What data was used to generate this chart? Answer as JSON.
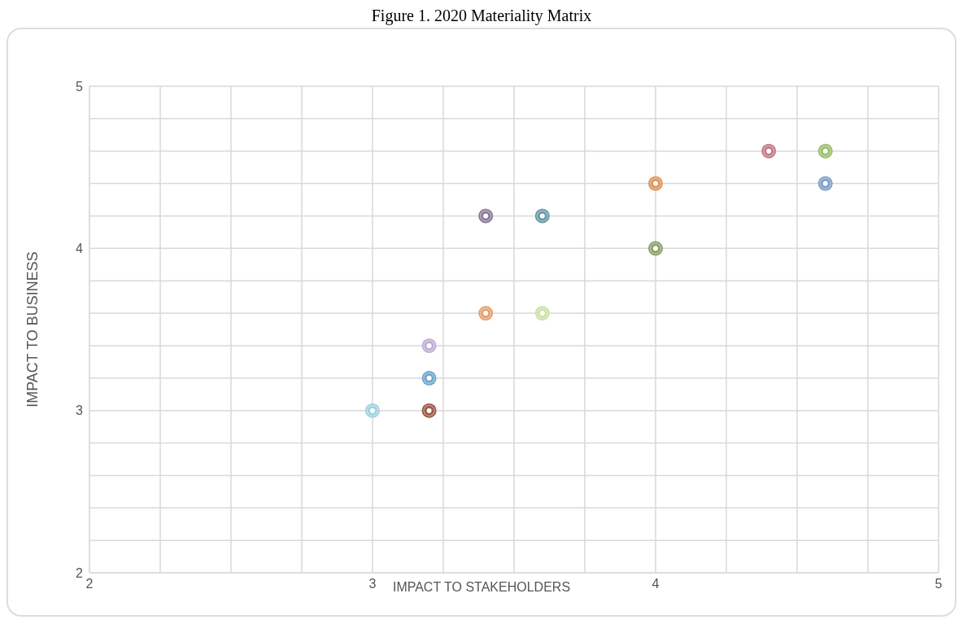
{
  "chart_data": {
    "type": "scatter",
    "title": "Figure 1. 2020 Materiality Matrix",
    "xlabel": "IMPACT TO STAKEHOLDERS",
    "ylabel": "IMPACT TO BUSINESS",
    "x": [
      3.0,
      3.2,
      3.2,
      3.2,
      3.4,
      3.6,
      3.4,
      3.6,
      4.0,
      4.0,
      4.4,
      4.6,
      4.6
    ],
    "values": [
      3.0,
      3.0,
      3.2,
      3.4,
      3.6,
      3.6,
      4.2,
      4.2,
      4.4,
      4.0,
      4.6,
      4.6,
      4.4
    ],
    "colors": [
      "#9fd3e0",
      "#a0584a",
      "#6fa8cc",
      "#bfaed6",
      "#e6a070",
      "#cfe0a8",
      "#8c7b9b",
      "#6a9aa8",
      "#e0955a",
      "#8fa070",
      "#c57a85",
      "#9cbf6f",
      "#7f9fc9"
    ],
    "xlim": [
      2,
      5
    ],
    "ylim": [
      2,
      5
    ],
    "xticks": [
      2,
      {
        "value": 2.25,
        "label": null
      },
      {
        "value": 2.5,
        "label": null
      },
      {
        "value": 2.75,
        "label": null
      },
      3,
      {
        "value": 3.25,
        "label": null
      },
      {
        "value": 3.5,
        "label": null
      },
      {
        "value": 3.75,
        "label": null
      },
      4,
      {
        "value": 4.25,
        "label": null
      },
      {
        "value": 4.5,
        "label": null
      },
      {
        "value": 4.75,
        "label": null
      },
      5
    ],
    "yticks": [
      2,
      {
        "value": 2.2,
        "label": null
      },
      {
        "value": 2.4,
        "label": null
      },
      {
        "value": 2.6,
        "label": null
      },
      {
        "value": 2.8,
        "label": null
      },
      3,
      {
        "value": 3.2,
        "label": null
      },
      {
        "value": 3.4,
        "label": null
      },
      {
        "value": 3.6,
        "label": null
      },
      {
        "value": 3.8,
        "label": null
      },
      4,
      {
        "value": 4.2,
        "label": null
      },
      {
        "value": 4.4,
        "label": null
      },
      {
        "value": 4.6,
        "label": null
      },
      {
        "value": 4.8,
        "label": null
      },
      5
    ],
    "grid": true,
    "marker": "circle"
  }
}
